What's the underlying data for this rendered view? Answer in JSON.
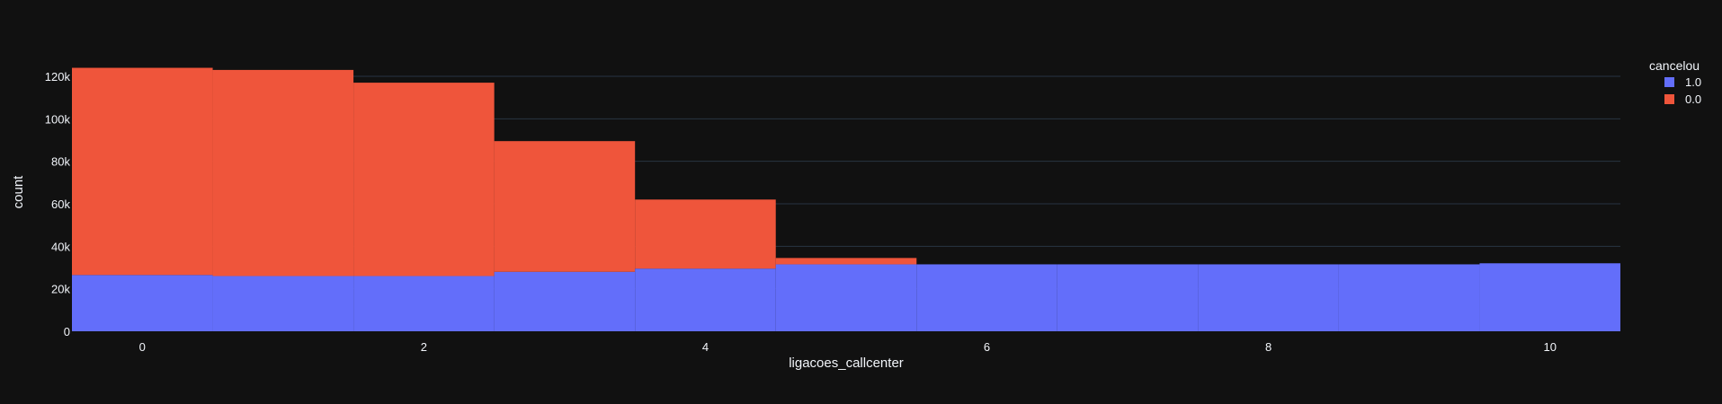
{
  "chart_data": {
    "type": "bar",
    "barmode": "stack",
    "xlabel": "ligacoes_callcenter",
    "ylabel": "count",
    "categories": [
      0,
      1,
      2,
      3,
      4,
      5,
      6,
      7,
      8,
      9,
      10
    ],
    "x_ticks": [
      0,
      2,
      4,
      6,
      8,
      10
    ],
    "y_ticks": [
      0,
      20000,
      40000,
      60000,
      80000,
      100000,
      120000
    ],
    "y_tick_labels": [
      "0",
      "20k",
      "40k",
      "60k",
      "80k",
      "100k",
      "120k"
    ],
    "ylim": [
      0,
      122000
    ],
    "grid": true,
    "legend": {
      "title": "cancelou",
      "placement": "top-right"
    },
    "series": [
      {
        "name": "1.0",
        "color": "#636efa",
        "values": [
          26500,
          26000,
          26000,
          28000,
          29500,
          31500,
          31500,
          31500,
          31500,
          31500,
          32000
        ]
      },
      {
        "name": "0.0",
        "color": "#ef553b",
        "values": [
          97500,
          97000,
          91000,
          61500,
          32500,
          3000,
          0,
          0,
          0,
          0,
          0
        ]
      }
    ]
  }
}
